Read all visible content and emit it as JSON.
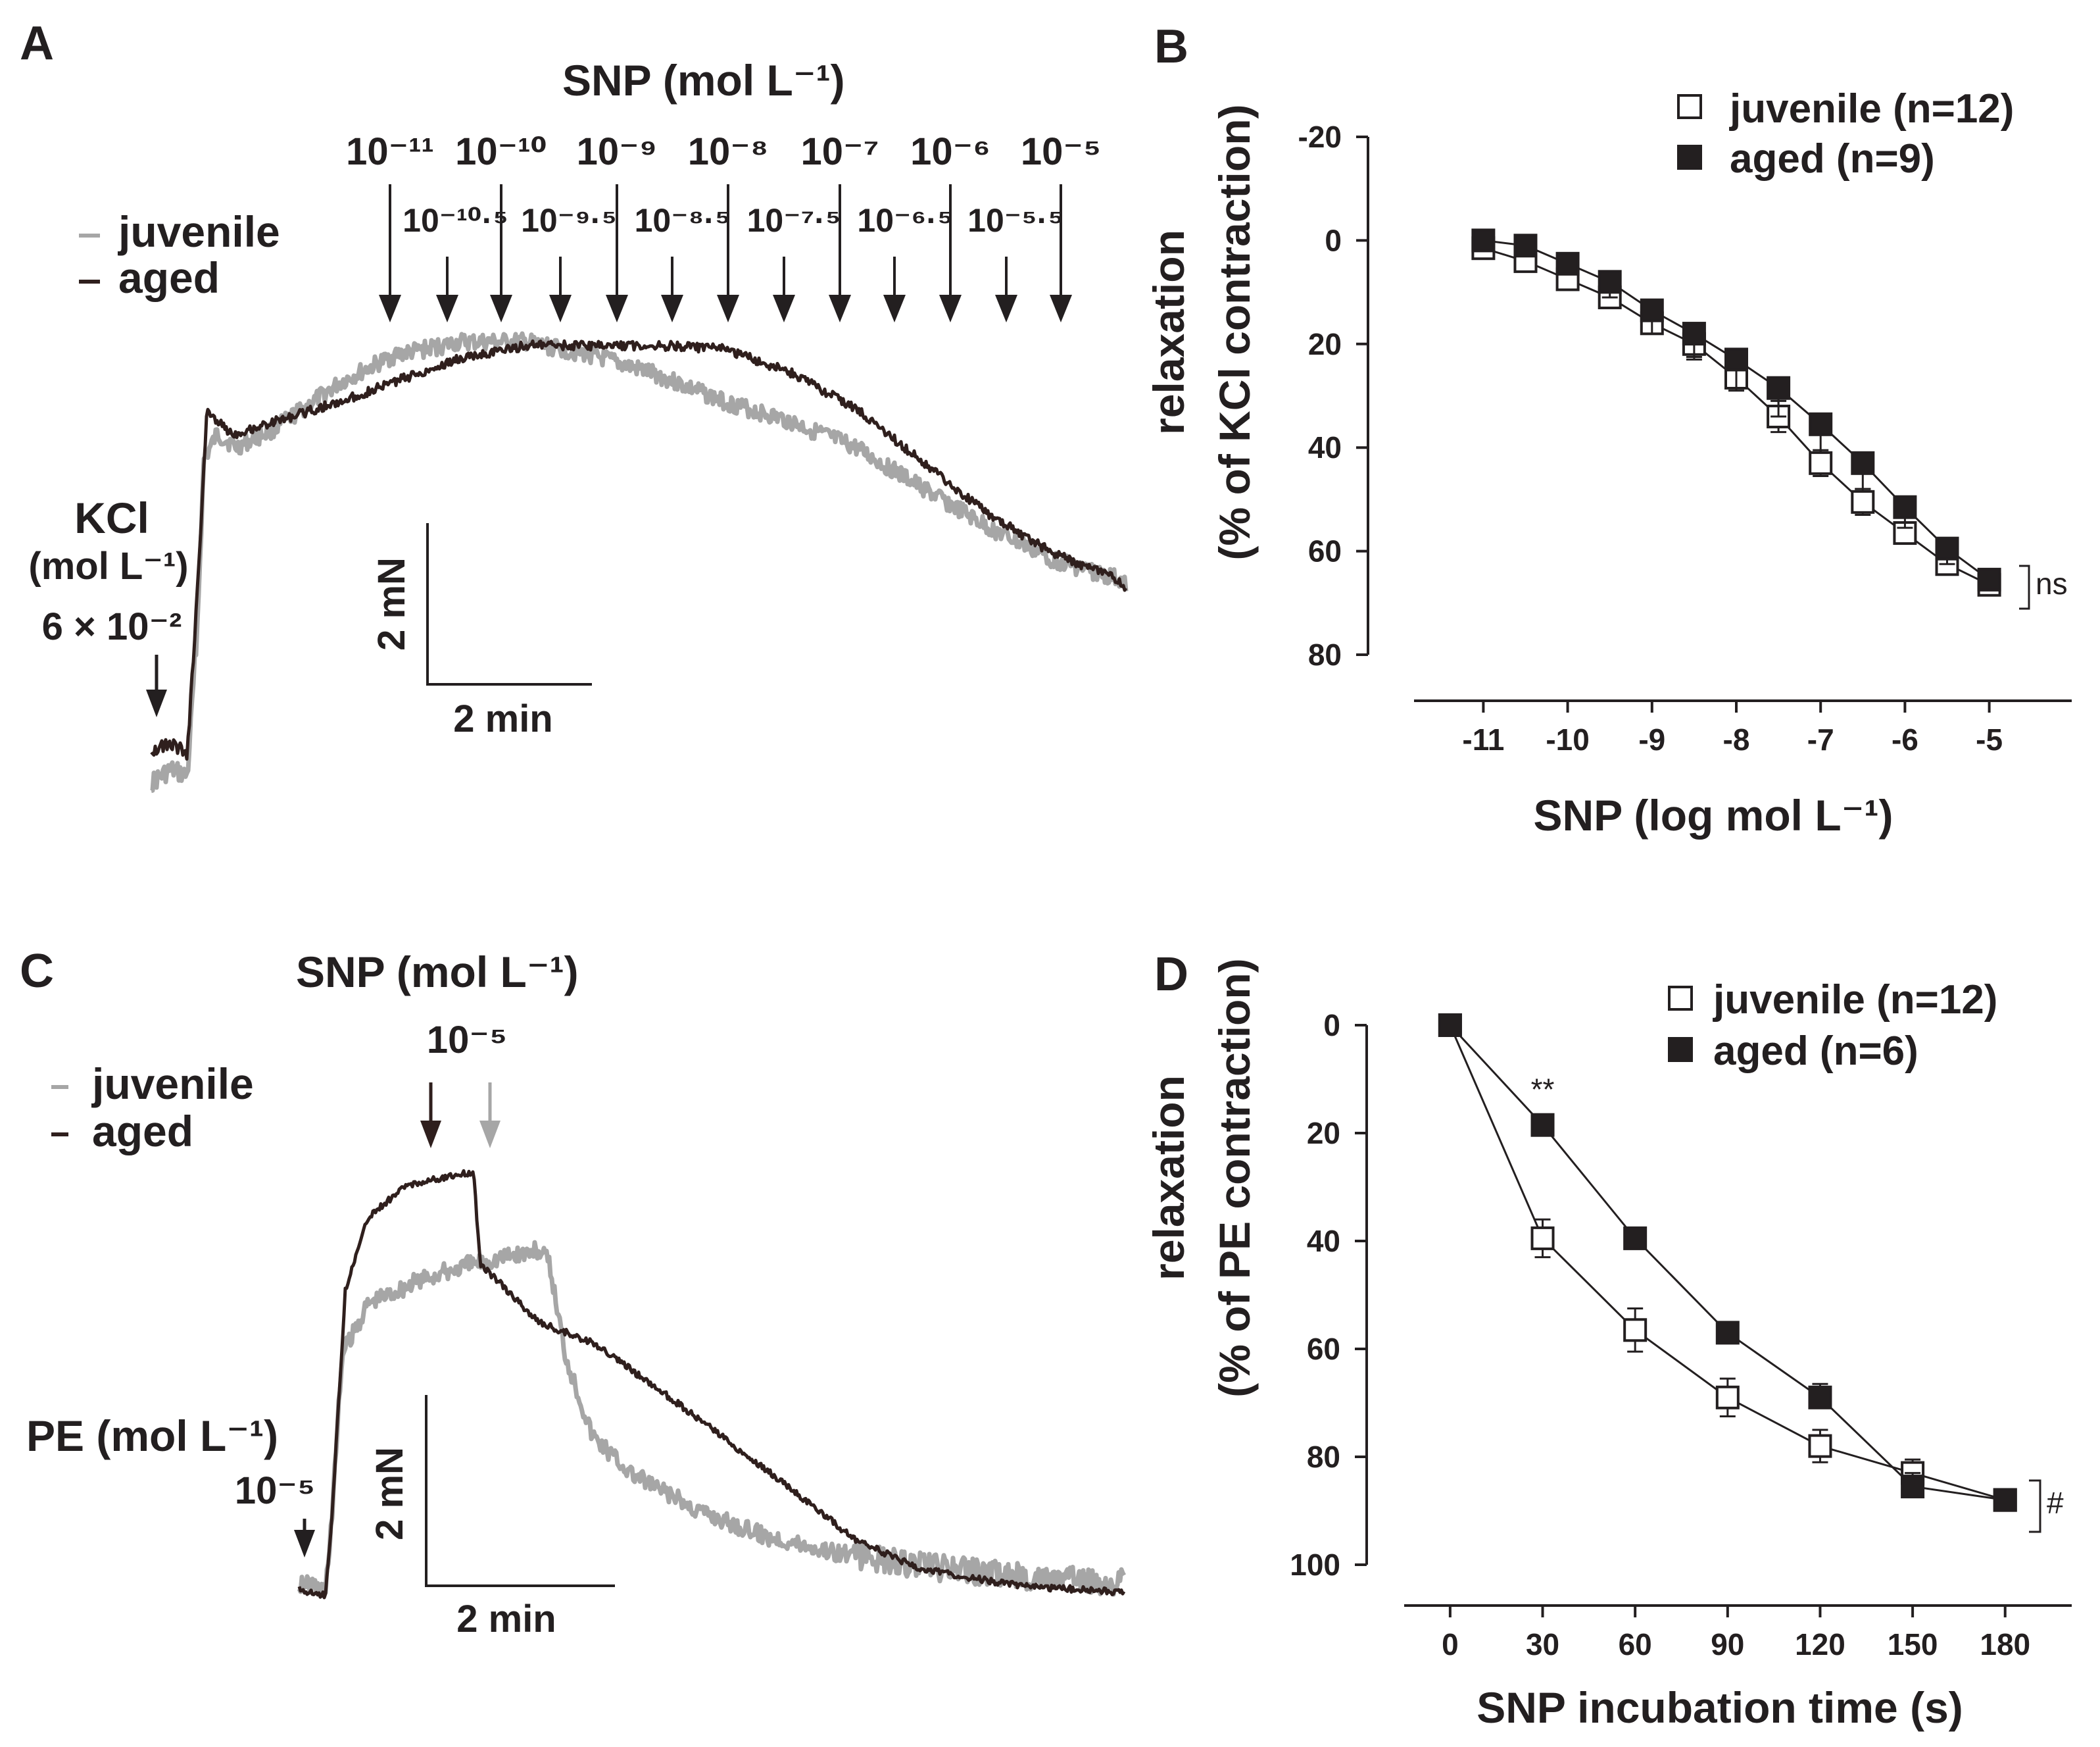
{
  "panels": {
    "A": {
      "letter": "A",
      "snp_header": "SNP (mol L⁻¹)",
      "snp_major": [
        "10⁻¹¹",
        "10⁻¹⁰",
        "10⁻⁹",
        "10⁻⁸",
        "10⁻⁷",
        "10⁻⁶",
        "10⁻⁵"
      ],
      "snp_half": [
        "10⁻¹⁰·⁵",
        "10⁻⁹·⁵",
        "10⁻⁸·⁵",
        "10⁻⁷·⁵",
        "10⁻⁶·⁵",
        "10⁻⁵·⁵"
      ],
      "legend_juvenile": "juvenile",
      "legend_aged": "aged",
      "kcl_label": "KCl",
      "kcl_unit": "(mol L⁻¹)",
      "kcl_conc": "6 × 10⁻²",
      "scale_y": "2 mN",
      "scale_x": "2 min"
    },
    "C": {
      "letter": "C",
      "snp_header": "SNP (mol L⁻¹)",
      "snp_conc": "10⁻⁵",
      "legend_juvenile": "juvenile",
      "legend_aged": "aged",
      "pe_label": "PE (mol L⁻¹)",
      "pe_conc": "10⁻⁵",
      "scale_y": "2 mN",
      "scale_x": "2 min"
    },
    "B": {
      "letter": "B"
    },
    "D": {
      "letter": "D"
    }
  },
  "colors": {
    "juvenile_trace": "#a6a6a6",
    "aged_trace": "#2f1f1d",
    "text": "#231f20"
  },
  "chart_data": [
    {
      "id": "B",
      "type": "line",
      "xlabel": "SNP (log mol L⁻¹)",
      "ylabel_line1": "relaxation",
      "ylabel_line2": "(% of KCl contraction)",
      "ylim": [
        -20,
        80
      ],
      "y_inverted": true,
      "yticks": [
        -20,
        0,
        20,
        40,
        60,
        80
      ],
      "xlim": [
        -11.9,
        -4.1
      ],
      "xticks": [
        -11,
        -10,
        -9,
        -8,
        -7,
        -6,
        -5
      ],
      "x": [
        -11,
        -10.5,
        -10,
        -9.5,
        -9,
        -8.5,
        -8,
        -7.5,
        -7,
        -6.5,
        -6,
        -5.5,
        -5
      ],
      "series": [
        {
          "name": "juvenile (n=12)",
          "marker": "open-square",
          "values": [
            1.5,
            4,
            7.5,
            11,
            16,
            20,
            26.5,
            34,
            43,
            50.5,
            56.5,
            62.5,
            66.5
          ],
          "errors": [
            1,
            1,
            1.5,
            1.5,
            2,
            2.5,
            2.5,
            3,
            2.5,
            2.5,
            2,
            1.5,
            1.5
          ]
        },
        {
          "name": "aged (n=9)",
          "marker": "filled-square",
          "values": [
            0,
            1,
            4.5,
            8,
            13.5,
            18,
            23,
            28.5,
            35.5,
            43,
            51.5,
            59.5,
            65.5
          ],
          "errors": [
            1,
            1,
            2,
            3,
            4.5,
            5,
            5.5,
            5.5,
            5.5,
            5,
            4,
            3,
            2
          ]
        }
      ],
      "significance": "ns"
    },
    {
      "id": "D",
      "type": "line",
      "xlabel": "SNP incubation time (s)",
      "ylabel_line1": "relaxation",
      "ylabel_line2": "(% of PE contraction)",
      "ylim": [
        0,
        100
      ],
      "y_inverted": true,
      "yticks": [
        0,
        20,
        40,
        60,
        80,
        100
      ],
      "xlim": [
        -10,
        192
      ],
      "xticks": [
        0,
        30,
        60,
        90,
        120,
        150,
        180
      ],
      "x": [
        0,
        30,
        60,
        90,
        120,
        150,
        180
      ],
      "series": [
        {
          "name": "juvenile (n=12)",
          "marker": "open-square",
          "values": [
            0,
            39.5,
            56.5,
            69,
            78,
            83,
            88
          ],
          "errors": [
            0,
            3.5,
            4,
            3.5,
            3,
            2.5,
            2
          ]
        },
        {
          "name": "aged (n=6)",
          "marker": "filled-square",
          "values": [
            0,
            18.5,
            39.5,
            57,
            69,
            85.5,
            88
          ],
          "errors": [
            0,
            1.5,
            2,
            2,
            2.5,
            2.5,
            2
          ]
        }
      ],
      "point_annotation": {
        "x": 30,
        "text": "**"
      },
      "significance": "#"
    }
  ]
}
